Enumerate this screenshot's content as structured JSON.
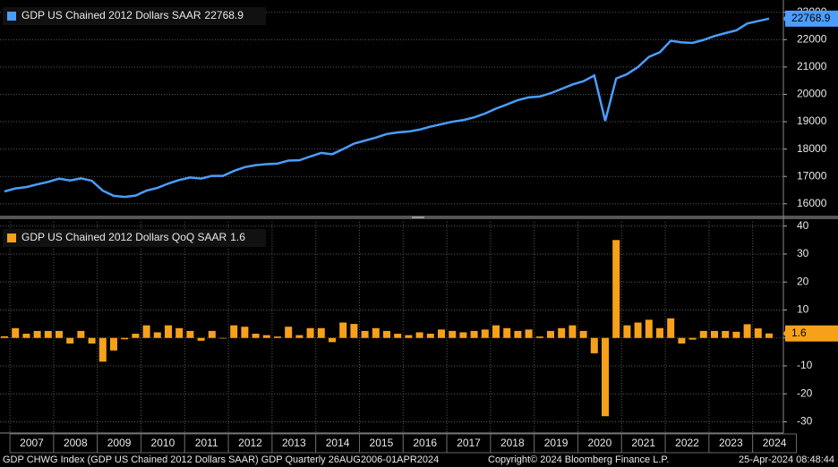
{
  "chart_data": [
    {
      "type": "line",
      "name": "GDP US Chained 2012 Dollars SAAR",
      "color": "#4a9eff",
      "values": [
        16450,
        16560,
        16610,
        16710,
        16800,
        16920,
        16850,
        16930,
        16840,
        16480,
        16290,
        16250,
        16300,
        16480,
        16580,
        16740,
        16870,
        16960,
        16920,
        17020,
        17020,
        17200,
        17340,
        17410,
        17450,
        17470,
        17580,
        17590,
        17730,
        17860,
        17810,
        18000,
        18200,
        18310,
        18420,
        18550,
        18610,
        18640,
        18710,
        18820,
        18910,
        19000,
        19060,
        19160,
        19300,
        19480,
        19630,
        19790,
        19890,
        19920,
        20040,
        20200,
        20360,
        20480,
        20690,
        19030,
        20580,
        20740,
        21000,
        21370,
        21540,
        21960,
        21900,
        21880,
        21990,
        22130,
        22240,
        22340,
        22590,
        22680,
        22768.9
      ],
      "ylim": [
        15600,
        23450
      ],
      "yticks": [
        16000,
        17000,
        18000,
        19000,
        20000,
        21000,
        22000,
        23000
      ],
      "grid": true
    },
    {
      "type": "bar",
      "name": "GDP US Chained 2012 Dollars QoQ SAAR",
      "color": "#f7a11a",
      "categories": [
        null,
        null,
        "2007",
        null,
        null,
        null,
        "2008",
        null,
        null,
        null,
        "2009",
        null,
        null,
        null,
        "2010",
        null,
        null,
        null,
        "2011",
        null,
        null,
        null,
        "2012",
        null,
        null,
        null,
        "2013",
        null,
        null,
        null,
        "2014",
        null,
        null,
        null,
        "2015",
        null,
        null,
        null,
        "2016",
        null,
        null,
        null,
        "2017",
        null,
        null,
        null,
        "2018",
        null,
        null,
        null,
        "2019",
        null,
        null,
        null,
        "2020",
        null,
        null,
        null,
        "2021",
        null,
        null,
        null,
        "2022",
        null,
        null,
        null,
        "2023",
        null,
        null,
        null,
        "2024"
      ],
      "values": [
        0.6,
        3.5,
        1.5,
        2.5,
        2.5,
        2.5,
        -2,
        2.5,
        -2,
        -8.5,
        -4.5,
        -0.5,
        1.5,
        4.5,
        2,
        4.5,
        3.5,
        2.5,
        -1,
        2.5,
        -0.2,
        4.5,
        4,
        1.5,
        1,
        0.5,
        4,
        1,
        3.5,
        3.5,
        -1.5,
        5.5,
        5,
        2.5,
        3.5,
        2.5,
        1.5,
        1,
        2,
        1.5,
        3,
        2.5,
        2,
        2.5,
        3,
        4.5,
        3.5,
        2.5,
        3,
        0.5,
        2.5,
        3.5,
        4.5,
        2.5,
        -5.5,
        -28,
        35,
        4.5,
        5.5,
        6.5,
        3.5,
        7,
        -2,
        -0.6,
        2.5,
        2.5,
        2.5,
        2.2,
        4.9,
        3.4,
        1.6
      ],
      "ylim": [
        -34,
        41.5
      ],
      "yticks": [
        -30,
        -20,
        -10,
        0,
        10,
        20,
        30,
        40
      ],
      "grid": true
    }
  ],
  "footer": {
    "left": "GDP CHWG Index (GDP US Chained 2012 Dollars SAAR) GDP  Quarterly 26AUG2006-01APR2024",
    "center": "Copyright© 2024 Bloomberg Finance L.P.",
    "right": "25-Apr-2024 08:48:44"
  }
}
